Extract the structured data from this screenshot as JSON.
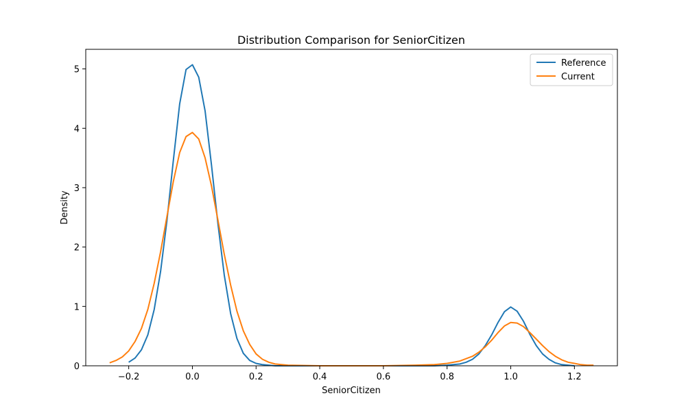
{
  "chart_data": {
    "type": "line",
    "title": "Distribution Comparison for SeniorCitizen",
    "xlabel": "SeniorCitizen",
    "ylabel": "Density",
    "xlim": [
      -0.335,
      1.335
    ],
    "ylim": [
      0,
      5.33
    ],
    "xticks": [
      -0.2,
      0.0,
      0.2,
      0.4,
      0.6,
      0.8,
      1.0,
      1.2
    ],
    "xtick_labels": [
      "−0.2",
      "0.0",
      "0.2",
      "0.4",
      "0.6",
      "0.8",
      "1.0",
      "1.2"
    ],
    "yticks": [
      0,
      1,
      2,
      3,
      4,
      5
    ],
    "ytick_labels": [
      "0",
      "1",
      "2",
      "3",
      "4",
      "5"
    ],
    "grid": false,
    "legend_position": "top-right",
    "series": [
      {
        "name": "Reference",
        "color": "#1f77b4",
        "x": [
          -0.2,
          -0.18,
          -0.16,
          -0.14,
          -0.12,
          -0.1,
          -0.08,
          -0.06,
          -0.04,
          -0.02,
          0.0,
          0.02,
          0.04,
          0.06,
          0.08,
          0.1,
          0.12,
          0.14,
          0.16,
          0.18,
          0.2,
          0.22,
          0.24,
          0.26,
          0.3,
          0.4,
          0.5,
          0.6,
          0.7,
          0.76,
          0.8,
          0.84,
          0.86,
          0.88,
          0.9,
          0.92,
          0.94,
          0.96,
          0.98,
          1.0,
          1.02,
          1.04,
          1.06,
          1.08,
          1.1,
          1.12,
          1.14,
          1.16,
          1.18,
          1.2
        ],
        "y": [
          0.06,
          0.13,
          0.27,
          0.52,
          0.95,
          1.59,
          2.44,
          3.45,
          4.41,
          4.99,
          5.07,
          4.86,
          4.29,
          3.38,
          2.4,
          1.53,
          0.88,
          0.46,
          0.21,
          0.09,
          0.04,
          0.02,
          0.01,
          0.0,
          0.0,
          0.0,
          0.0,
          0.0,
          0.0,
          0.0,
          0.01,
          0.03,
          0.06,
          0.11,
          0.2,
          0.34,
          0.52,
          0.73,
          0.91,
          0.99,
          0.92,
          0.75,
          0.53,
          0.34,
          0.2,
          0.11,
          0.05,
          0.02,
          0.01,
          0.0
        ]
      },
      {
        "name": "Current",
        "color": "#ff7f0e",
        "x": [
          -0.26,
          -0.24,
          -0.22,
          -0.2,
          -0.18,
          -0.16,
          -0.14,
          -0.12,
          -0.1,
          -0.08,
          -0.06,
          -0.04,
          -0.02,
          0.0,
          0.02,
          0.04,
          0.06,
          0.08,
          0.1,
          0.12,
          0.14,
          0.16,
          0.18,
          0.2,
          0.22,
          0.24,
          0.26,
          0.3,
          0.4,
          0.5,
          0.6,
          0.7,
          0.76,
          0.8,
          0.84,
          0.88,
          0.9,
          0.92,
          0.94,
          0.96,
          0.98,
          1.0,
          1.02,
          1.04,
          1.06,
          1.08,
          1.1,
          1.12,
          1.14,
          1.16,
          1.18,
          1.2,
          1.22,
          1.24,
          1.26
        ],
        "y": [
          0.05,
          0.09,
          0.15,
          0.25,
          0.41,
          0.63,
          0.95,
          1.39,
          1.92,
          2.51,
          3.1,
          3.59,
          3.86,
          3.93,
          3.82,
          3.5,
          3.03,
          2.46,
          1.88,
          1.36,
          0.92,
          0.59,
          0.36,
          0.2,
          0.11,
          0.06,
          0.03,
          0.01,
          0.0,
          0.0,
          0.0,
          0.01,
          0.02,
          0.04,
          0.08,
          0.16,
          0.23,
          0.32,
          0.43,
          0.56,
          0.67,
          0.73,
          0.72,
          0.66,
          0.56,
          0.45,
          0.34,
          0.24,
          0.16,
          0.1,
          0.06,
          0.04,
          0.02,
          0.01,
          0.01
        ]
      }
    ]
  }
}
